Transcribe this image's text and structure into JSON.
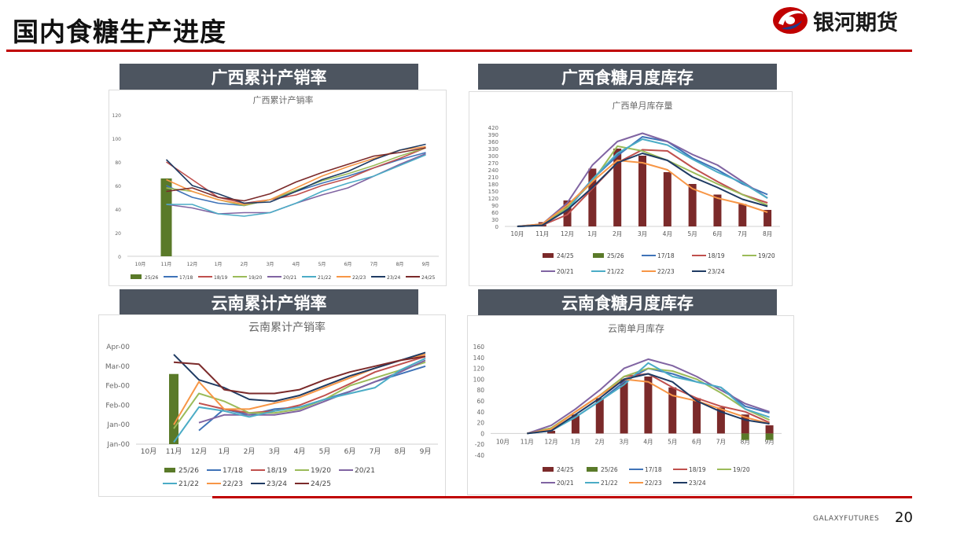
{
  "page": {
    "title": "国内食糖生产进度",
    "page_number": "20",
    "footer_brand": "GALAXYFUTURES"
  },
  "logo": {
    "text": "银河期货"
  },
  "colors": {
    "accent_red": "#c00000",
    "panel_bar": "#4d5560",
    "s2526": "#5a7a29",
    "s2425": "#7b2a2a",
    "s1718": "#3f73b8",
    "s1819": "#c0504d",
    "s1920": "#9bbb59",
    "s2021": "#8064a2",
    "s2122": "#4bacc6",
    "s2223": "#f79646",
    "s2324": "#1f3b63",
    "s2425line": "#7b2a2a"
  },
  "panels": [
    {
      "header": "广西累计产销率"
    },
    {
      "header": "广西食糖月度库存"
    },
    {
      "header": "云南累计产销率"
    },
    {
      "header": "云南食糖月度库存"
    }
  ],
  "chart_data": [
    {
      "type": "line",
      "title": "广西累计产销率",
      "categories": [
        "10月",
        "11月",
        "12月",
        "1月",
        "2月",
        "3月",
        "4月",
        "5月",
        "6月",
        "7月",
        "8月",
        "9月"
      ],
      "y_ticks": [
        "0",
        "20",
        "40",
        "60",
        "80",
        "100",
        "120"
      ],
      "ylim": [
        0,
        120
      ],
      "bars": [
        {
          "name": "25/26",
          "values": [
            null,
            66,
            null,
            null,
            null,
            null,
            null,
            null,
            null,
            null,
            null,
            null
          ]
        }
      ],
      "series": [
        {
          "name": "17/18",
          "values": [
            null,
            60,
            50,
            45,
            43,
            48,
            55,
            62,
            68,
            75,
            82,
            88
          ]
        },
        {
          "name": "18/19",
          "values": [
            null,
            80,
            65,
            50,
            45,
            48,
            52,
            60,
            66,
            75,
            83,
            92
          ]
        },
        {
          "name": "19/20",
          "values": [
            null,
            58,
            55,
            48,
            43,
            48,
            56,
            64,
            70,
            77,
            85,
            92
          ]
        },
        {
          "name": "20/21",
          "values": [
            null,
            44,
            41,
            36,
            37,
            37,
            45,
            52,
            58,
            68,
            78,
            87
          ]
        },
        {
          "name": "21/22",
          "values": [
            null,
            44,
            44,
            36,
            34,
            37,
            45,
            55,
            62,
            68,
            77,
            86
          ]
        },
        {
          "name": "22/23",
          "values": [
            null,
            65,
            55,
            48,
            44,
            48,
            58,
            68,
            76,
            83,
            90,
            93
          ]
        },
        {
          "name": "23/24",
          "values": [
            null,
            82,
            60,
            53,
            45,
            46,
            55,
            65,
            72,
            82,
            90,
            95
          ]
        },
        {
          "name": "24/25",
          "values": [
            null,
            55,
            58,
            50,
            47,
            53,
            63,
            71,
            78,
            85,
            88,
            92
          ]
        }
      ],
      "legend": [
        "25/26",
        "17/18",
        "18/19",
        "19/20",
        "20/21",
        "21/22",
        "22/23",
        "23/24",
        "24/25"
      ]
    },
    {
      "type": "bar+line",
      "title": "广西单月库存量",
      "categories": [
        "10月",
        "11月",
        "12月",
        "1月",
        "2月",
        "3月",
        "4月",
        "5月",
        "6月",
        "7月",
        "8月"
      ],
      "y_ticks": [
        "0",
        "30",
        "60",
        "90",
        "120",
        "150",
        "180",
        "210",
        "240",
        "270",
        "300",
        "330",
        "360",
        "390",
        "420"
      ],
      "ylim": [
        0,
        420
      ],
      "bars": [
        {
          "name": "24/25",
          "values": [
            0,
            18,
            110,
            245,
            330,
            300,
            230,
            180,
            135,
            95,
            70
          ]
        },
        {
          "name": "25/26",
          "values": [
            0,
            0,
            null,
            null,
            null,
            null,
            null,
            null,
            null,
            null,
            null
          ]
        }
      ],
      "series": [
        {
          "name": "17/18",
          "values": [
            0,
            5,
            80,
            200,
            300,
            380,
            360,
            290,
            240,
            180,
            135
          ]
        },
        {
          "name": "18/19",
          "values": [
            0,
            5,
            50,
            160,
            270,
            325,
            320,
            250,
            190,
            135,
            100
          ]
        },
        {
          "name": "19/20",
          "values": [
            0,
            8,
            80,
            190,
            340,
            320,
            280,
            230,
            180,
            135,
            90
          ]
        },
        {
          "name": "20/21",
          "values": [
            0,
            10,
            100,
            260,
            360,
            395,
            360,
            305,
            260,
            190,
            120
          ]
        },
        {
          "name": "21/22",
          "values": [
            0,
            5,
            70,
            200,
            310,
            370,
            345,
            285,
            230,
            185,
            120
          ]
        },
        {
          "name": "22/23",
          "values": [
            0,
            10,
            90,
            190,
            280,
            270,
            240,
            160,
            120,
            95,
            60
          ]
        },
        {
          "name": "23/24",
          "values": [
            0,
            5,
            70,
            165,
            270,
            310,
            280,
            210,
            165,
            115,
            85
          ]
        }
      ],
      "legend": [
        "24/25",
        "25/26",
        "17/18",
        "18/19",
        "19/20",
        "20/21",
        "21/22",
        "22/23",
        "23/24"
      ]
    },
    {
      "type": "line",
      "title": "云南累计产销率",
      "categories": [
        "10月",
        "11月",
        "12月",
        "1月",
        "2月",
        "3月",
        "4月",
        "5月",
        "6月",
        "7月",
        "8月",
        "9月"
      ],
      "y_ticks": [
        "Jan-00",
        "Jan-00",
        "Feb-00",
        "Feb-00",
        "Mar-00",
        "Apr-00"
      ],
      "ylim": [
        0,
        5
      ],
      "bars": [
        {
          "name": "25/26",
          "values": [
            null,
            3.6,
            null,
            null,
            null,
            null,
            null,
            null,
            null,
            null,
            null,
            null
          ]
        }
      ],
      "series": [
        {
          "name": "17/18",
          "values": [
            null,
            null,
            0.7,
            1.8,
            1.5,
            1.8,
            1.9,
            2.3,
            2.7,
            3.2,
            3.6,
            4.0
          ]
        },
        {
          "name": "18/19",
          "values": [
            null,
            null,
            2.1,
            1.8,
            1.6,
            1.7,
            2.0,
            2.5,
            3.1,
            3.7,
            4.1,
            4.5
          ]
        },
        {
          "name": "19/20",
          "values": [
            null,
            0.8,
            2.6,
            2.2,
            1.6,
            1.6,
            1.8,
            2.3,
            3.0,
            3.4,
            3.8,
            4.2
          ]
        },
        {
          "name": "20/21",
          "values": [
            null,
            null,
            1.1,
            1.5,
            1.5,
            1.5,
            1.7,
            2.2,
            2.7,
            3.2,
            3.7,
            4.3
          ]
        },
        {
          "name": "21/22",
          "values": [
            null,
            0.1,
            1.9,
            1.7,
            1.4,
            1.7,
            1.9,
            2.3,
            2.6,
            2.9,
            3.8,
            4.4
          ]
        },
        {
          "name": "22/23",
          "values": [
            null,
            1.0,
            3.2,
            1.8,
            1.8,
            2.1,
            2.4,
            2.9,
            3.4,
            3.9,
            4.3,
            4.6
          ]
        },
        {
          "name": "23/24",
          "values": [
            null,
            4.6,
            3.3,
            2.9,
            2.3,
            2.2,
            2.5,
            3.0,
            3.5,
            3.9,
            4.3,
            4.7
          ]
        },
        {
          "name": "24/25",
          "values": [
            null,
            4.2,
            4.1,
            2.8,
            2.6,
            2.6,
            2.8,
            3.3,
            3.7,
            4.0,
            4.3,
            4.5
          ]
        }
      ],
      "legend": [
        "25/26",
        "17/18",
        "18/19",
        "19/20",
        "20/21",
        "21/22",
        "22/23",
        "23/24",
        "24/25"
      ]
    },
    {
      "type": "bar+line",
      "title": "云南单月库存",
      "categories": [
        "10月",
        "11月",
        "12月",
        "1月",
        "2月",
        "3月",
        "4月",
        "5月",
        "6月",
        "7月",
        "8月",
        "9月"
      ],
      "y_ticks": [
        "-40",
        "-20",
        "0",
        "20",
        "40",
        "60",
        "80",
        "100",
        "120",
        "140",
        "160"
      ],
      "ylim": [
        -40,
        160
      ],
      "bars": [
        {
          "name": "24/25",
          "values": [
            null,
            0,
            5,
            35,
            65,
            100,
            105,
            85,
            65,
            48,
            35,
            15
          ]
        },
        {
          "name": "25/26",
          "values": [
            null,
            null,
            null,
            null,
            null,
            null,
            null,
            null,
            null,
            null,
            -12,
            -12
          ]
        }
      ],
      "series": [
        {
          "name": "17/18",
          "values": [
            null,
            0,
            8,
            30,
            60,
            95,
            120,
            110,
            95,
            85,
            50,
            38
          ]
        },
        {
          "name": "18/19",
          "values": [
            null,
            0,
            10,
            40,
            70,
            105,
            110,
            85,
            65,
            50,
            40,
            20
          ]
        },
        {
          "name": "19/20",
          "values": [
            null,
            0,
            10,
            40,
            70,
            105,
            120,
            115,
            100,
            75,
            45,
            25
          ]
        },
        {
          "name": "20/21",
          "values": [
            null,
            0,
            15,
            45,
            80,
            120,
            137,
            125,
            105,
            80,
            55,
            40
          ]
        },
        {
          "name": "21/22",
          "values": [
            null,
            0,
            5,
            30,
            60,
            90,
            130,
            105,
            95,
            85,
            45,
            30
          ]
        },
        {
          "name": "22/23",
          "values": [
            null,
            0,
            8,
            40,
            70,
            100,
            95,
            70,
            60,
            45,
            30,
            18
          ]
        },
        {
          "name": "23/24",
          "values": [
            null,
            0,
            5,
            35,
            65,
            100,
            110,
            95,
            60,
            40,
            25,
            18
          ]
        }
      ],
      "pre_points": [
        0,
        1
      ],
      "legend": [
        "24/25",
        "25/26",
        "17/18",
        "18/19",
        "19/20",
        "20/21",
        "21/22",
        "22/23",
        "23/24"
      ]
    }
  ]
}
